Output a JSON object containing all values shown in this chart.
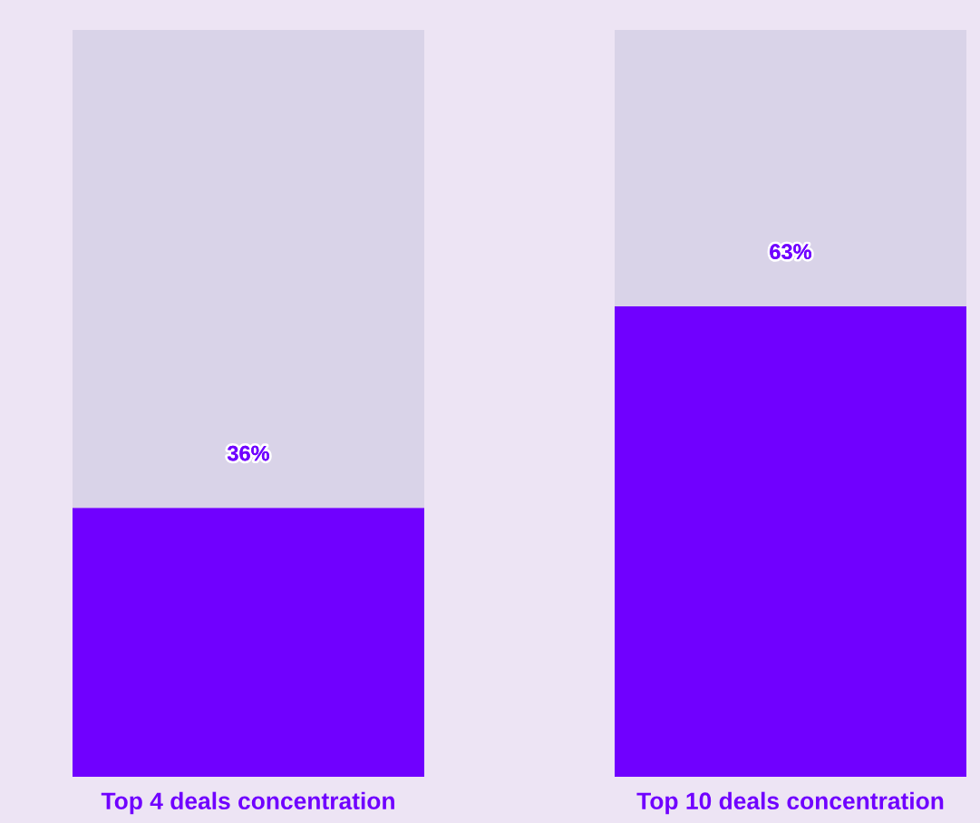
{
  "chart_data": {
    "type": "bar",
    "stacked": true,
    "categories": [
      "Top 4 deals concentration",
      "Top 10 deals concentration"
    ],
    "series": [
      {
        "color": "#7000ff",
        "values": [
          36,
          63
        ],
        "value_labels": [
          "36%",
          "63%"
        ]
      },
      {
        "color": "#d9d3e8",
        "values": [
          64,
          37
        ]
      }
    ],
    "ylim": [
      0,
      100
    ],
    "tick_labels": "x",
    "grid": false,
    "legend": false
  }
}
